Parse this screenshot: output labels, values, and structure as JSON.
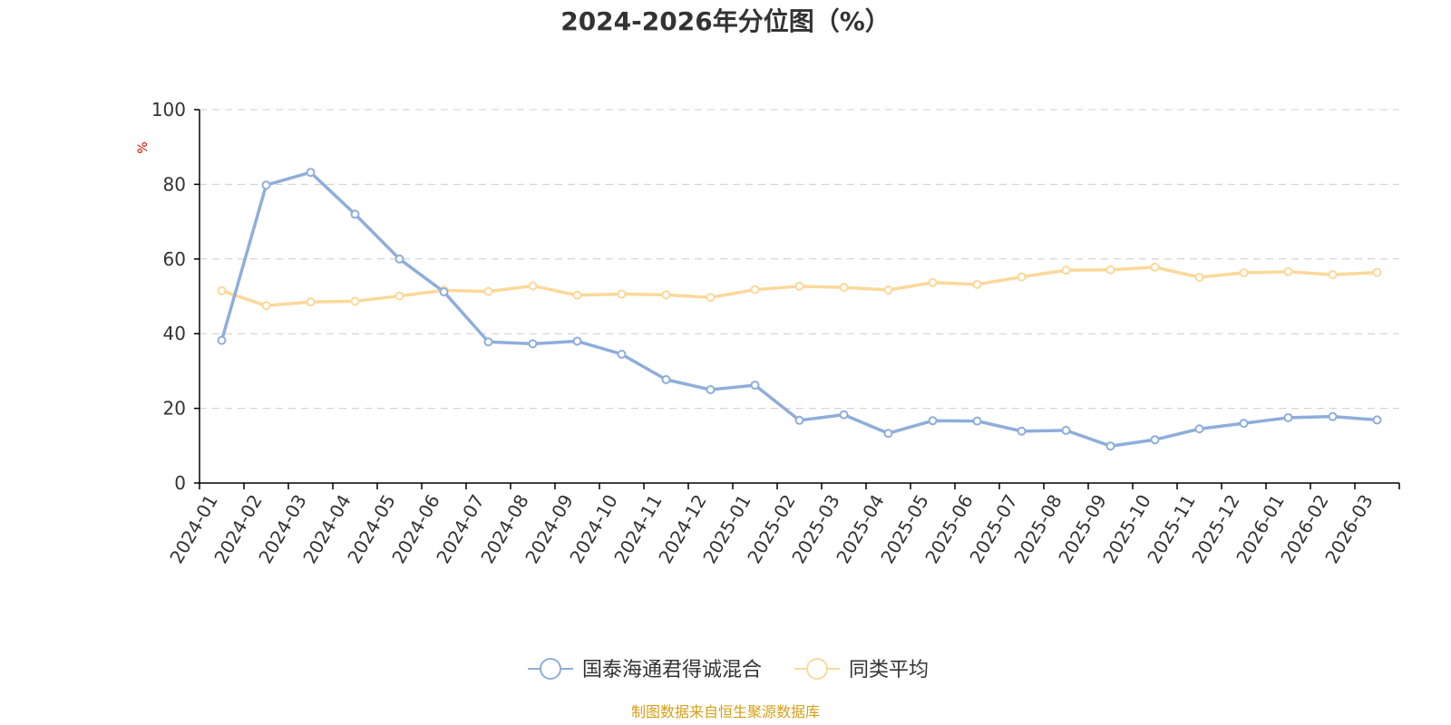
{
  "chart_data": {
    "type": "line",
    "title": "2024-2026年分位图（%）",
    "ylabel": "%",
    "xlabel": "",
    "ylim": [
      0,
      100
    ],
    "yticks": [
      0,
      20,
      40,
      60,
      80,
      100
    ],
    "grid": true,
    "legend_position": "bottom",
    "categories": [
      "2024-01",
      "2024-02",
      "2024-03",
      "2024-04",
      "2024-05",
      "2024-06",
      "2024-07",
      "2024-08",
      "2024-09",
      "2024-10",
      "2024-11",
      "2024-12",
      "2025-01",
      "2025-02",
      "2025-03",
      "2025-04",
      "2025-05",
      "2025-06",
      "2025-07",
      "2025-08",
      "2025-09",
      "2025-10",
      "2025-11",
      "2025-12",
      "2026-01",
      "2026-02",
      "2026-03"
    ],
    "series": [
      {
        "name": "国泰海通君得诚混合",
        "color": "#8eaedb",
        "values": [
          38.2,
          79.8,
          83.2,
          72.0,
          60.0,
          51.2,
          37.8,
          37.3,
          38.0,
          34.5,
          27.7,
          25.0,
          26.2,
          16.8,
          18.3,
          13.3,
          16.7,
          16.6,
          13.9,
          14.1,
          9.9,
          11.6,
          14.5,
          16.0,
          17.5,
          17.8,
          16.9
        ]
      },
      {
        "name": "同类平均",
        "color": "#fcd89a",
        "values": [
          51.5,
          47.5,
          48.5,
          48.7,
          50.1,
          51.6,
          51.3,
          52.8,
          50.3,
          50.6,
          50.4,
          49.7,
          51.8,
          52.7,
          52.4,
          51.7,
          53.7,
          53.2,
          55.2,
          57.0,
          57.1,
          57.8,
          55.1,
          56.3,
          56.6,
          55.8,
          56.4
        ]
      }
    ]
  },
  "footer": {
    "source_text": "制图数据来自恒生聚源数据库",
    "color": "#d4a017"
  }
}
